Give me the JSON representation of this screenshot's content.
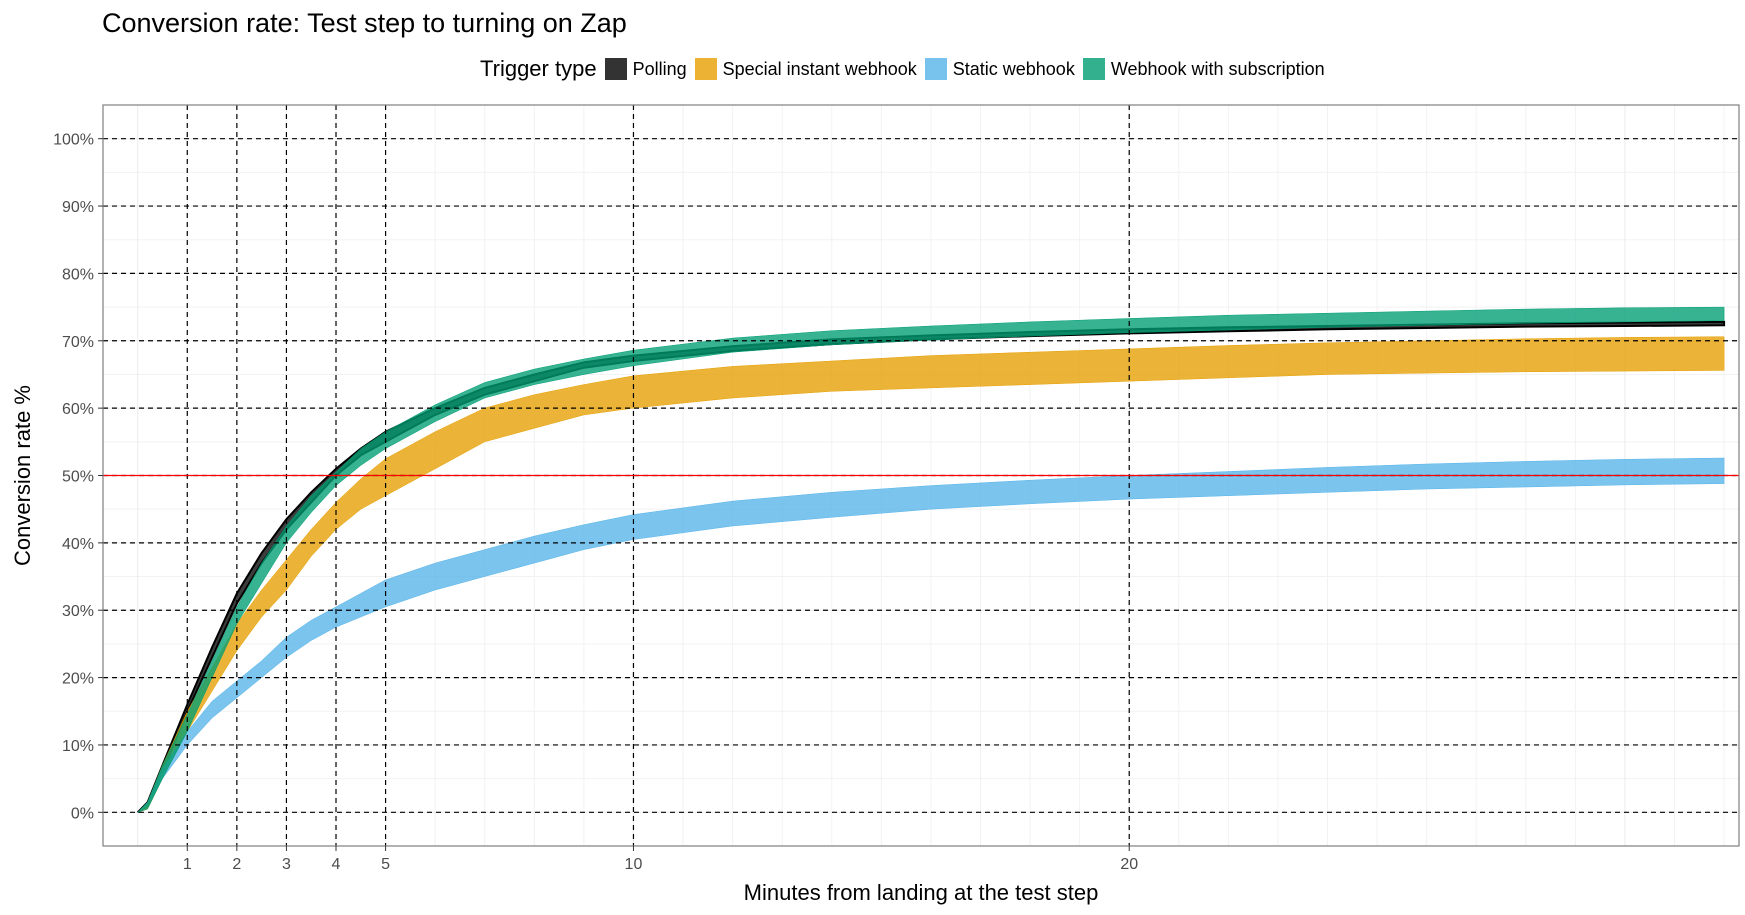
{
  "chart_data": {
    "type": "area",
    "title": "Conversion rate: Test step to turning on Zap",
    "xlabel": "Minutes from landing at the test step",
    "ylabel": "Conversion rate %",
    "legend_title": "Trigger type",
    "legend_position": "top",
    "xlim": [
      -0.7,
      32.3
    ],
    "ylim": [
      -5,
      105
    ],
    "x_ticks": [
      1,
      2,
      3,
      4,
      5,
      10,
      20
    ],
    "y_ticks": [
      0,
      10,
      20,
      30,
      40,
      50,
      60,
      70,
      80,
      90,
      100
    ],
    "y_tick_labels": [
      "0%",
      "10%",
      "20%",
      "30%",
      "40%",
      "50%",
      "60%",
      "70%",
      "80%",
      "90%",
      "100%"
    ],
    "vertical_reference_lines": [
      1,
      2,
      3,
      4,
      5,
      10,
      20
    ],
    "horizontal_reference_line": {
      "y": 50,
      "color": "#ff0000"
    },
    "grid": true,
    "x": [
      0,
      0.2,
      0.5,
      1,
      1.5,
      2,
      2.5,
      3,
      3.5,
      4,
      4.5,
      5,
      6,
      7,
      8,
      9,
      10,
      12,
      14,
      16,
      18,
      20,
      22,
      24,
      26,
      28,
      30,
      32
    ],
    "series": [
      {
        "name": "Polling",
        "color": "#000000",
        "fill": "#333333",
        "lower": [
          0,
          1,
          6,
          15,
          23,
          31,
          37,
          42,
          46,
          50,
          53,
          55,
          59,
          62,
          64,
          66,
          67,
          68.5,
          69.5,
          70.2,
          70.7,
          71.1,
          71.4,
          71.7,
          71.9,
          72.1,
          72.2,
          72.3
        ],
        "upper": [
          0,
          1.5,
          7,
          16,
          24.5,
          32.5,
          38.5,
          43.5,
          47.5,
          51,
          54,
          56.5,
          60,
          63,
          65,
          66.8,
          67.8,
          69.2,
          70.2,
          70.8,
          71.3,
          71.7,
          72,
          72.2,
          72.4,
          72.6,
          72.7,
          72.8
        ]
      },
      {
        "name": "Special instant webhook",
        "color": "#E69F00",
        "fill": "#E69F00",
        "lower": [
          0,
          0.5,
          5,
          12,
          18,
          24,
          29,
          33,
          38,
          42,
          45,
          47,
          51,
          55,
          57,
          59,
          60,
          61.5,
          62.5,
          63,
          63.5,
          64,
          64.5,
          65,
          65.2,
          65.4,
          65.5,
          65.6
        ],
        "upper": [
          0,
          1.5,
          7,
          15,
          21.5,
          28,
          33,
          37.5,
          42,
          46,
          49.5,
          52.5,
          56.5,
          60,
          62,
          63.5,
          64.8,
          66.2,
          67,
          67.8,
          68.3,
          68.8,
          69.3,
          69.7,
          70,
          70.3,
          70.5,
          70.6
        ]
      },
      {
        "name": "Static webhook",
        "color": "#56B4E9",
        "fill": "#56B4E9",
        "lower": [
          0,
          1,
          5,
          10,
          14,
          17,
          20,
          23,
          25.5,
          27.5,
          29,
          30.5,
          33,
          35,
          37,
          39,
          40.5,
          42.5,
          43.8,
          45,
          45.8,
          46.5,
          47,
          47.5,
          48,
          48.3,
          48.6,
          48.8
        ],
        "upper": [
          0,
          1.5,
          6.5,
          12,
          16.5,
          19.5,
          22.5,
          26,
          28.5,
          30.5,
          32.5,
          34.5,
          37,
          39,
          41,
          42.7,
          44.2,
          46.2,
          47.5,
          48.5,
          49.3,
          50,
          50.6,
          51.2,
          51.7,
          52.1,
          52.4,
          52.6
        ]
      },
      {
        "name": "Webhook with subscription",
        "color": "#009E73",
        "fill": "#009E73",
        "lower": [
          0,
          0.5,
          5,
          12,
          20,
          28,
          34,
          40,
          44.5,
          48.5,
          51.5,
          54,
          58,
          61.5,
          63.5,
          65,
          66.3,
          68.3,
          69.4,
          70.1,
          70.7,
          71.2,
          71.6,
          72,
          72.3,
          72.6,
          72.8,
          73
        ],
        "upper": [
          0,
          1.5,
          7,
          14.5,
          22.5,
          30.5,
          37,
          42.5,
          47,
          50.5,
          54,
          56.5,
          60.5,
          63.8,
          65.8,
          67.3,
          68.6,
          70.4,
          71.5,
          72.2,
          72.8,
          73.3,
          73.8,
          74.1,
          74.4,
          74.7,
          74.9,
          75
        ]
      }
    ]
  }
}
